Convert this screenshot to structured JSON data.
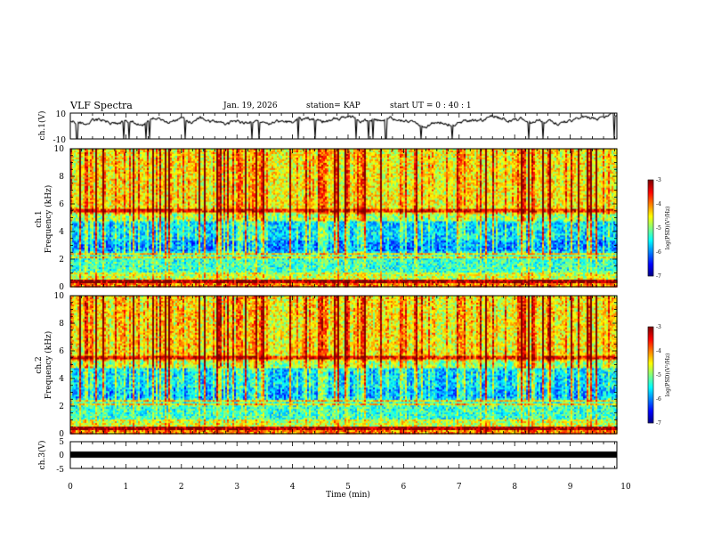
{
  "header": {
    "title": "VLF Spectra",
    "date": "Jan. 19, 2026",
    "station": "station= KAP",
    "start_ut": "start  UT =   0 : 40 : 1"
  },
  "chart_data": [
    {
      "id": "ch1-waveform",
      "type": "line",
      "ylabel": "ch.1(V)",
      "ylim": [
        -10,
        10
      ],
      "yticks": [
        "10",
        "-10"
      ],
      "xlim": [
        0,
        10
      ],
      "description_series": "noisy voltage trace between about -3 and 10 V with sharp negative spikes"
    },
    {
      "id": "ch1-spectrogram",
      "type": "heatmap",
      "ylabel": "Frequency  (kHz)",
      "channel_label": "ch.1",
      "ylim": [
        0,
        10
      ],
      "yticks": [
        "0",
        "2",
        "4",
        "6",
        "8",
        "10"
      ],
      "xlim": [
        0,
        10
      ],
      "colorbar": {
        "label": "log(PSD)(V²/Hz)",
        "ticks": [
          "-3",
          "-4",
          "-5",
          "-6",
          "-7"
        ],
        "range": [
          -7,
          -3
        ]
      }
    },
    {
      "id": "ch2-spectrogram",
      "type": "heatmap",
      "ylabel": "Frequency  (kHz)",
      "channel_label": "ch.2",
      "ylim": [
        0,
        10
      ],
      "yticks": [
        "0",
        "2",
        "4",
        "6",
        "8",
        "10"
      ],
      "xlim": [
        0,
        10
      ],
      "colorbar": {
        "label": "log(PSD)(V²/Hz)",
        "ticks": [
          "-3",
          "-4",
          "-5",
          "-6",
          "-7"
        ],
        "range": [
          -7,
          -3
        ]
      }
    },
    {
      "id": "ch3-waveform",
      "type": "line",
      "ylabel": "ch.3(V)",
      "ylim": [
        -5,
        5
      ],
      "yticks": [
        "5",
        "0",
        "-5"
      ],
      "xlim": [
        0,
        10
      ],
      "xlabel": "Time  (min)",
      "xticks": [
        "0",
        "1",
        "2",
        "3",
        "4",
        "5",
        "6",
        "7",
        "8",
        "9",
        "10"
      ],
      "description_series": "thick flat band near 0 V"
    }
  ]
}
